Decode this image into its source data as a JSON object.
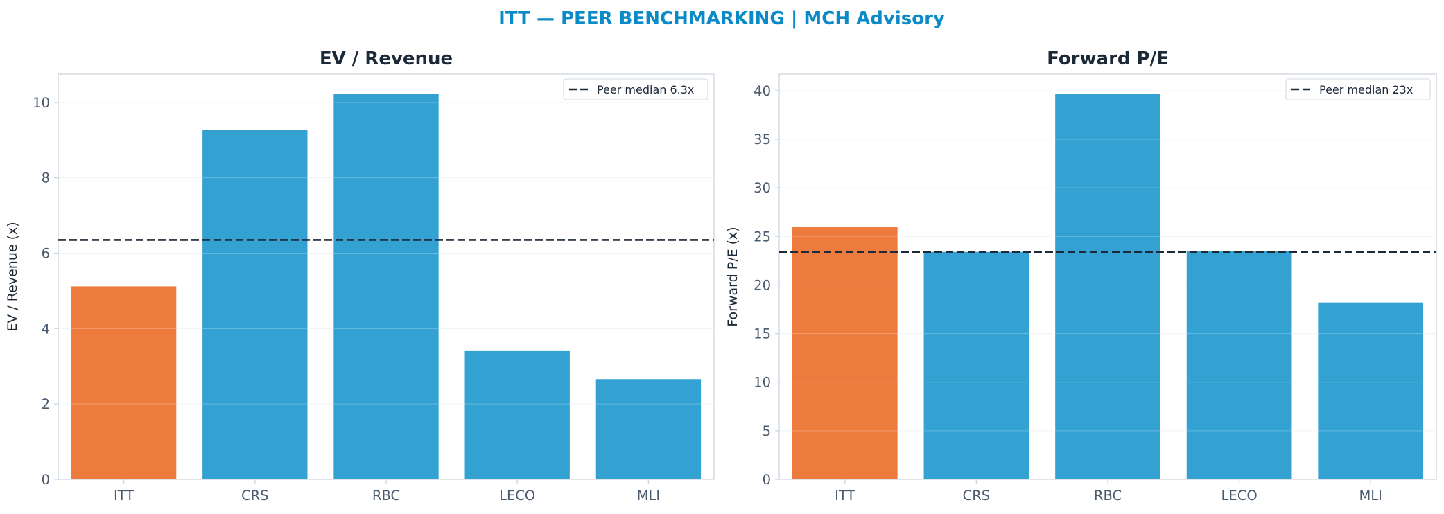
{
  "figure": {
    "title": "ITT — PEER BENCHMARKING | MCH Advisory"
  },
  "colors": {
    "title": "#0a8ac6",
    "panel_title": "#1c2938",
    "highlight": "#ee7b3e",
    "peer": "#33a2d3",
    "median_line": "#1c2938",
    "axis_text": "#4a5b70",
    "label_text": "#1c2938",
    "spine": "#cfd5dc",
    "grid": "#edf0f3"
  },
  "chart_data": [
    {
      "type": "bar",
      "title": "EV / Revenue",
      "xlabel": "",
      "ylabel": "EV / Revenue (x)",
      "categories": [
        "ITT",
        "CRS",
        "RBC",
        "LECO",
        "MLI"
      ],
      "values": [
        5.12,
        9.28,
        10.23,
        3.42,
        2.66
      ],
      "highlight": "ITT",
      "ylim": [
        0,
        10.75
      ],
      "yticks": [
        0,
        2,
        4,
        6,
        8,
        10
      ],
      "grid": true,
      "reference_line": {
        "value": 6.35,
        "label": "Peer median 6.3x"
      },
      "legend": "top-right"
    },
    {
      "type": "bar",
      "title": "Forward P/E",
      "xlabel": "",
      "ylabel": "Forward P/E (x)",
      "categories": [
        "ITT",
        "CRS",
        "RBC",
        "LECO",
        "MLI"
      ],
      "values": [
        26.0,
        23.4,
        39.7,
        23.5,
        18.2
      ],
      "highlight": "ITT",
      "ylim": [
        0,
        41.7
      ],
      "yticks": [
        0,
        5,
        10,
        15,
        20,
        25,
        30,
        35,
        40
      ],
      "grid": true,
      "reference_line": {
        "value": 23.4,
        "label": "Peer median 23x"
      },
      "legend": "top-right"
    }
  ]
}
